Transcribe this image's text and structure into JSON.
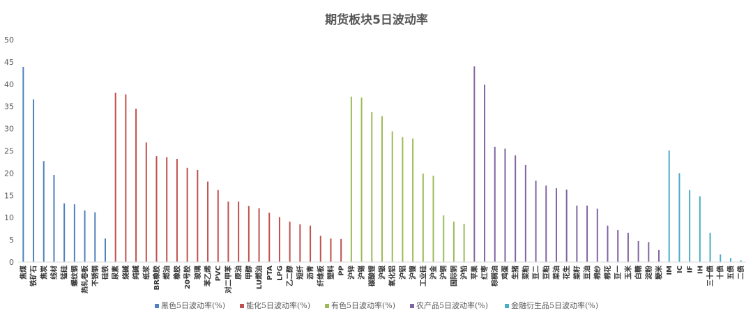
{
  "chart_data": {
    "type": "bar",
    "title": "期货板块5日波动率",
    "xlabel": "",
    "ylabel": "",
    "ylim": [
      0,
      50
    ],
    "yticks": [
      0,
      5,
      10,
      15,
      20,
      25,
      30,
      35,
      40,
      45,
      50
    ],
    "grid": false,
    "legend_position": "bottom",
    "series": [
      {
        "name": "黑色5日波动率(%)",
        "color": "#4F81BD",
        "categories": [
          "焦煤",
          "铁矿石",
          "焦炭",
          "线材",
          "锰硅",
          "螺纹钢",
          "热轧卷板",
          "不锈钢",
          "硅铁"
        ],
        "values": [
          43.9,
          36.6,
          22.7,
          19.6,
          13.2,
          13.0,
          11.6,
          11.2,
          5.3
        ]
      },
      {
        "name": "能化5日波动率(%)",
        "color": "#C0504D",
        "categories": [
          "尿素",
          "烧碱",
          "纯碱",
          "纸浆",
          "BR橡胶",
          "燃油",
          "橡胶",
          "20号胶",
          "玻璃",
          "苯乙烯",
          "PVC",
          "对二甲苯",
          "原油",
          "甲醇",
          "LU燃油",
          "PTA",
          "LPG",
          "乙二醇",
          "短纤",
          "沥青",
          "纤维板",
          "塑料",
          "PP"
        ],
        "values": [
          38.1,
          37.7,
          34.5,
          26.9,
          23.8,
          23.6,
          23.2,
          21.2,
          20.7,
          18.1,
          16.2,
          13.6,
          13.6,
          12.6,
          12.1,
          11.1,
          10.1,
          9.1,
          8.5,
          8.2,
          5.9,
          5.3,
          5.2
        ]
      },
      {
        "name": "有色5日波动率(%)",
        "color": "#9BBB59",
        "categories": [
          "沪锌",
          "沪锡",
          "碳酸锂",
          "沪银",
          "氧化铝",
          "沪铝",
          "沪镍",
          "工业硅",
          "沪金",
          "沪铜",
          "国际铜",
          "沪铅"
        ],
        "values": [
          37.2,
          37.0,
          33.7,
          32.8,
          29.4,
          28.1,
          27.8,
          19.9,
          19.4,
          10.5,
          9.1,
          8.6
        ]
      },
      {
        "name": "农产品5日波动率(%)",
        "color": "#8064A2",
        "categories": [
          "苹果",
          "红枣",
          "棕榈油",
          "鸡蛋",
          "生猪",
          "菜粕",
          "豆二",
          "豆粕",
          "菜油",
          "花生",
          "菜籽",
          "豆油",
          "棉纱",
          "棉花",
          "豆一",
          "玉米",
          "白糖",
          "淀粉",
          "粳米"
        ],
        "values": [
          44.0,
          39.9,
          25.9,
          25.5,
          24.0,
          21.8,
          18.3,
          17.2,
          16.6,
          16.3,
          12.7,
          12.7,
          12.0,
          8.2,
          7.2,
          6.6,
          4.7,
          4.5,
          2.7
        ]
      },
      {
        "name": "金融衍生品5日波动率(%)",
        "color": "#4BACC6",
        "categories": [
          "IM",
          "IC",
          "IF",
          "IH",
          "三十债",
          "十债",
          "五债",
          "二债"
        ],
        "values": [
          25.1,
          20.0,
          16.2,
          14.8,
          6.6,
          1.7,
          0.9,
          0.4
        ]
      }
    ]
  }
}
